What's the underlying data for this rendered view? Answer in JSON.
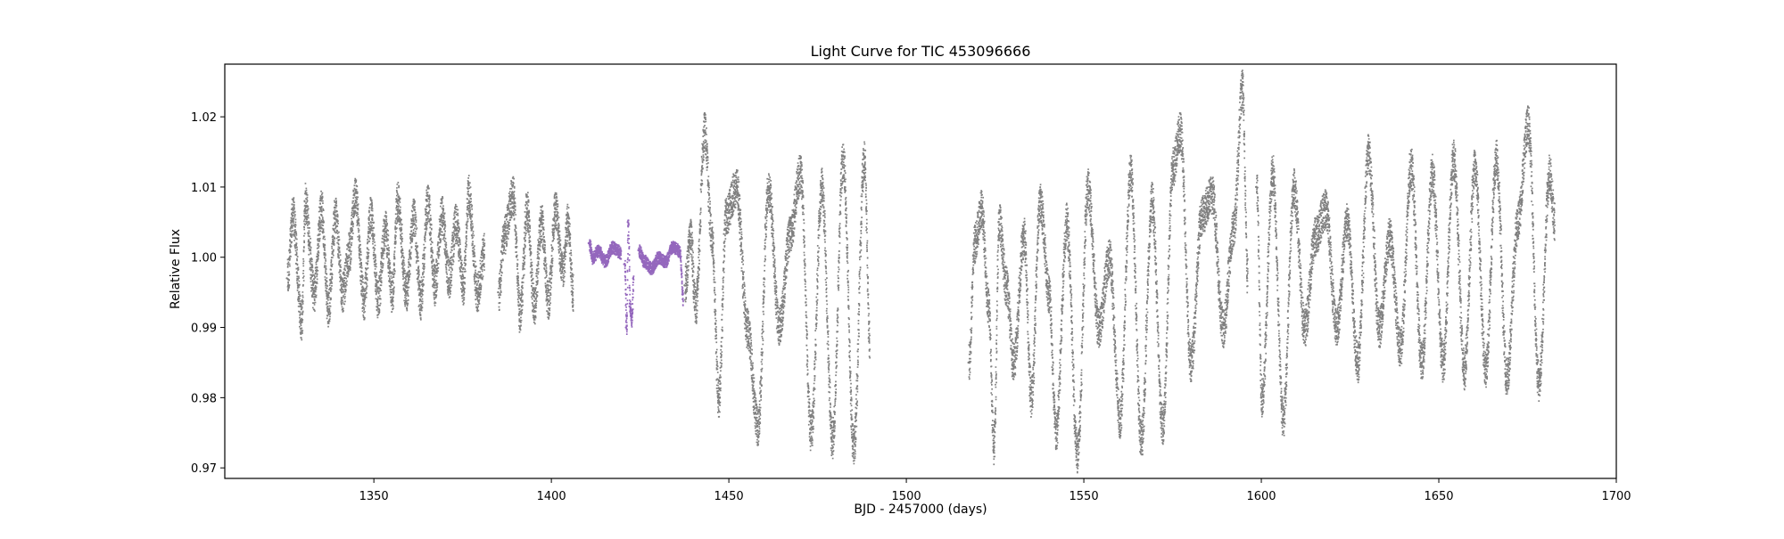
{
  "chart_data": {
    "type": "scatter",
    "title": "Light Curve for TIC 453096666",
    "xlabel": "BJD - 2457000 (days)",
    "ylabel": "Relative Flux",
    "xlim": [
      1308,
      1700
    ],
    "ylim": [
      0.9685,
      1.0275
    ],
    "xticks": [
      1350,
      1400,
      1450,
      1500,
      1550,
      1600,
      1650,
      1700
    ],
    "xtick_labels": [
      "1350",
      "1400",
      "1450",
      "1500",
      "1550",
      "1600",
      "1650",
      "1700"
    ],
    "yticks": [
      0.97,
      0.98,
      0.99,
      1.0,
      1.01,
      1.02
    ],
    "ytick_labels": [
      "0.97",
      "0.98",
      "0.99",
      "1.00",
      "1.01",
      "1.02"
    ],
    "grid": false,
    "legend": "none",
    "series": [
      {
        "color": "#808080",
        "segments": [
          {
            "x": [
              1325.5,
              1327,
              1329.5,
              1330.5,
              1333,
              1335,
              1337,
              1339,
              1341,
              1343,
              1344.5,
              1347,
              1349,
              1351,
              1353,
              1355,
              1356.5,
              1359,
              1361,
              1363,
              1365,
              1367,
              1369,
              1371,
              1373,
              1375,
              1376.5,
              1379,
              1381
            ],
            "y": [
              0.997,
              1.006,
              0.991,
              1.008,
              0.995,
              1.007,
              0.993,
              1.006,
              0.995,
              1.001,
              1.009,
              0.994,
              1.006,
              0.994,
              1.004,
              0.995,
              1.008,
              0.995,
              1.006,
              0.994,
              1.008,
              0.996,
              1.006,
              0.997,
              1.005,
              0.996,
              1.009,
              0.995,
              1.001
            ]
          },
          {
            "x": [
              1385,
              1386.5,
              1389,
              1391,
              1393,
              1395,
              1397,
              1399,
              1401,
              1403,
              1404.5,
              1406
            ],
            "y": [
              0.995,
              1.003,
              1.009,
              0.992,
              1.007,
              0.993,
              1.005,
              0.994,
              1.007,
              0.998,
              1.005,
              0.995
            ]
          },
          {
            "x": [
              1437.5,
              1439,
              1440.5,
              1443,
              1445,
              1447,
              1449,
              1452,
              1455,
              1458,
              1461,
              1464,
              1467,
              1470,
              1473,
              1476,
              1479,
              1482,
              1485,
              1488,
              1489.5
            ],
            "y": [
              0.996,
              1.003,
              0.993,
              1.018,
              1.003,
              0.98,
              1.006,
              1.01,
              0.99,
              0.976,
              1.01,
              0.99,
              1.003,
              1.012,
              0.975,
              1.01,
              0.974,
              1.014,
              0.973,
              1.014,
              0.988
            ]
          },
          {
            "x": [
              1517.5,
              1519,
              1521,
              1523,
              1524.5,
              1526,
              1528,
              1530,
              1533,
              1535,
              1537.5,
              1540,
              1542,
              1545,
              1548,
              1551,
              1554,
              1557,
              1560,
              1563,
              1566,
              1569,
              1572,
              1575,
              1577,
              1580,
              1583,
              1586,
              1589,
              1592,
              1594.5,
              1596
            ],
            "y": [
              0.985,
              1.002,
              1.007,
              0.993,
              0.973,
              1.005,
              0.996,
              0.985,
              1.003,
              0.98,
              1.008,
              0.995,
              0.975,
              1.005,
              0.972,
              1.01,
              0.99,
              1.0,
              0.977,
              1.012,
              0.974,
              1.008,
              0.976,
              1.013,
              1.018,
              0.985,
              1.006,
              1.009,
              0.99,
              1.004,
              1.024,
              0.997
            ]
          },
          {
            "x": [
              1598.5,
              1600,
              1603,
              1606,
              1609,
              1612,
              1615,
              1618,
              1621,
              1624,
              1627,
              1630,
              1633,
              1636,
              1639,
              1642,
              1645,
              1648,
              1651,
              1654,
              1657,
              1660,
              1663,
              1666,
              1669,
              1672,
              1675,
              1678,
              1681,
              1682.5
            ],
            "y": [
              1.01,
              0.98,
              1.012,
              0.977,
              1.01,
              0.99,
              1.003,
              1.007,
              0.99,
              1.005,
              0.985,
              1.015,
              0.99,
              1.003,
              0.987,
              1.013,
              0.985,
              1.012,
              0.985,
              1.014,
              0.984,
              1.013,
              0.984,
              1.014,
              0.983,
              1.005,
              1.019,
              0.982,
              1.012,
              1.005
            ]
          }
        ]
      },
      {
        "color": "#9467bd",
        "segments": [
          {
            "x": [
              1410.5,
              1411.5,
              1413,
              1415,
              1417,
              1418.5,
              1419.5
            ],
            "y": [
              1.002,
              1.0,
              1.001,
              0.9995,
              1.0015,
              1.001,
              1.0005
            ]
          },
          {
            "x": [
              1420.5,
              1421,
              1421.5,
              1422,
              1422.5,
              1423
            ],
            "y": [
              0.999,
              0.99,
              1.005,
              0.993,
              0.991,
              0.997
            ]
          },
          {
            "x": [
              1424.5,
              1426,
              1428,
              1430,
              1432,
              1434,
              1436,
              1437
            ],
            "y": [
              1.001,
              0.9995,
              0.9985,
              1.0,
              0.9995,
              1.0015,
              1.001,
              0.994
            ]
          }
        ]
      }
    ]
  }
}
